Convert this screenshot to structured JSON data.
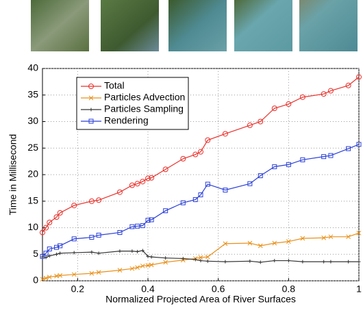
{
  "chart_data": {
    "type": "line",
    "xlabel": "Normalized Projected Area of River Surfaces",
    "ylabel": "Time in Millisecond",
    "x": [
      0.1,
      0.11,
      0.12,
      0.14,
      0.15,
      0.19,
      0.24,
      0.26,
      0.32,
      0.355,
      0.37,
      0.385,
      0.4,
      0.41,
      0.45,
      0.5,
      0.535,
      0.55,
      0.57,
      0.62,
      0.69,
      0.72,
      0.76,
      0.8,
      0.84,
      0.9,
      0.92,
      0.97,
      1
    ],
    "series": [
      {
        "name": "Total",
        "color": "#e8302a",
        "marker": "circle",
        "values": [
          9.1,
          10,
          11,
          12,
          12.8,
          14.2,
          15,
          15.2,
          16.7,
          18,
          18.3,
          18.7,
          19.3,
          19.4,
          21,
          23,
          23.8,
          24.3,
          26.5,
          27.7,
          29.3,
          30,
          32.5,
          33.3,
          34.6,
          35.2,
          35.8,
          36.8,
          38.4
        ]
      },
      {
        "name": "Particles Advection",
        "color": "#e8901a",
        "marker": "x",
        "values": [
          0.3,
          0.5,
          0.7,
          0.9,
          1,
          1.2,
          1.4,
          1.6,
          2,
          2.3,
          2.5,
          2.8,
          2.9,
          3,
          3.5,
          3.9,
          4.2,
          4.4,
          4.5,
          7,
          7.1,
          6.6,
          7.1,
          7.4,
          8,
          8.1,
          8.3,
          8.3,
          9
        ]
      },
      {
        "name": "Particles Sampling",
        "color": "#333333",
        "marker": "plus",
        "values": [
          4.5,
          4.4,
          4.7,
          5,
          5.2,
          5.3,
          5.4,
          5.2,
          5.6,
          5.6,
          5.5,
          5.7,
          4.6,
          4.5,
          4.3,
          4.2,
          4,
          3.8,
          3.7,
          3.6,
          3.7,
          3.5,
          3.8,
          3.8,
          3.6,
          3.6,
          3.6,
          3.6,
          3.6
        ]
      },
      {
        "name": "Rendering",
        "color": "#2a3fd8",
        "marker": "square",
        "values": [
          4.6,
          5.2,
          6,
          6.3,
          6.6,
          7.9,
          8.2,
          8.6,
          9.1,
          10.2,
          10.3,
          10.4,
          11.4,
          11.5,
          13.2,
          14.7,
          15.3,
          16.2,
          18.2,
          17.1,
          18.3,
          19.8,
          21.5,
          21.9,
          22.8,
          23.4,
          23.6,
          24.9,
          25.7
        ]
      }
    ],
    "xlim": [
      0.1,
      1
    ],
    "xticks": [
      0.2,
      0.4,
      0.6,
      0.8,
      1
    ],
    "ylim": [
      0,
      40
    ],
    "yticks": [
      0,
      5,
      10,
      15,
      20,
      25,
      30,
      35,
      40
    ],
    "grid": true,
    "legend": "upper-left"
  }
}
